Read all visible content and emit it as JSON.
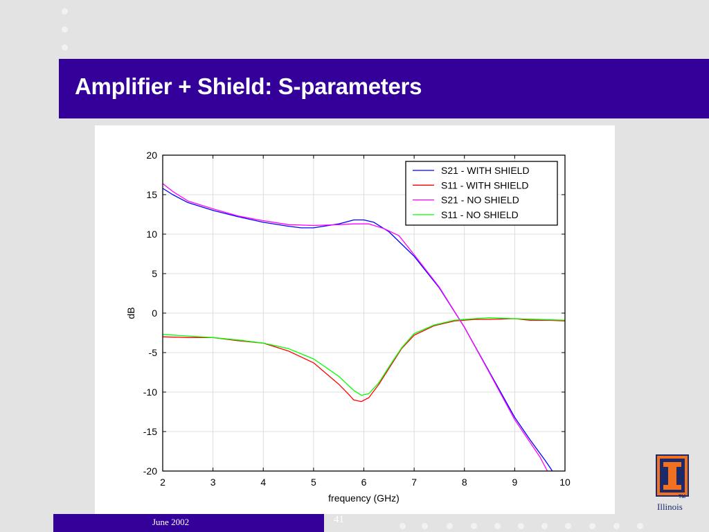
{
  "slide": {
    "title": "Amplifier + Shield: S-parameters",
    "footer_date": "June 2002",
    "page_number": "41",
    "logo_text": "Illinois",
    "logo_tm": "TM"
  },
  "colors": {
    "title_bar": "#330099",
    "series": [
      "#0000ff",
      "#ff0000",
      "#ff00ff",
      "#00ff00"
    ]
  },
  "chart_data": {
    "type": "line",
    "title": "",
    "xlabel": "frequency (GHz)",
    "ylabel": "dB",
    "xlim": [
      2,
      10
    ],
    "ylim": [
      -20,
      20
    ],
    "xticks": [
      2,
      3,
      4,
      5,
      6,
      7,
      8,
      9,
      10
    ],
    "yticks": [
      20,
      15,
      10,
      5,
      0,
      -5,
      -10,
      -15,
      -20
    ],
    "grid": true,
    "legend_position": "top-right",
    "series": [
      {
        "name": "S21 - WITH SHIELD",
        "color": "#0000ff",
        "points": [
          [
            2,
            15.8
          ],
          [
            2.2,
            15
          ],
          [
            2.5,
            14
          ],
          [
            3,
            13
          ],
          [
            3.5,
            12.2
          ],
          [
            4,
            11.5
          ],
          [
            4.5,
            11
          ],
          [
            4.75,
            10.8
          ],
          [
            5,
            10.8
          ],
          [
            5.5,
            11.3
          ],
          [
            5.8,
            11.8
          ],
          [
            6,
            11.8
          ],
          [
            6.2,
            11.5
          ],
          [
            6.5,
            10.3
          ],
          [
            7,
            7.2
          ],
          [
            7.5,
            3.2
          ],
          [
            8,
            -1.8
          ],
          [
            8.5,
            -7.5
          ],
          [
            9,
            -13.2
          ],
          [
            9.3,
            -16
          ],
          [
            9.6,
            -18.6
          ],
          [
            9.75,
            -20
          ]
        ]
      },
      {
        "name": "S11 - WITH SHIELD",
        "color": "#ff0000",
        "points": [
          [
            2,
            -3
          ],
          [
            2.5,
            -3.1
          ],
          [
            3,
            -3.1
          ],
          [
            3.5,
            -3.5
          ],
          [
            4,
            -3.8
          ],
          [
            4.5,
            -4.8
          ],
          [
            5,
            -6.3
          ],
          [
            5.5,
            -9
          ],
          [
            5.7,
            -10.3
          ],
          [
            5.8,
            -11
          ],
          [
            5.95,
            -11.2
          ],
          [
            6.1,
            -10.7
          ],
          [
            6.3,
            -9
          ],
          [
            6.5,
            -7
          ],
          [
            6.75,
            -4.5
          ],
          [
            7,
            -2.8
          ],
          [
            7.4,
            -1.6
          ],
          [
            7.8,
            -1
          ],
          [
            8.2,
            -0.8
          ],
          [
            8.5,
            -0.8
          ],
          [
            9,
            -0.7
          ],
          [
            9.3,
            -0.9
          ],
          [
            9.7,
            -0.9
          ],
          [
            10,
            -1
          ]
        ]
      },
      {
        "name": "S21 - NO SHIELD",
        "color": "#ff00ff",
        "points": [
          [
            2,
            16.4
          ],
          [
            2.2,
            15.4
          ],
          [
            2.5,
            14.2
          ],
          [
            3,
            13.2
          ],
          [
            3.5,
            12.3
          ],
          [
            4,
            11.7
          ],
          [
            4.5,
            11.2
          ],
          [
            5,
            11.1
          ],
          [
            5.5,
            11.2
          ],
          [
            5.8,
            11.3
          ],
          [
            6.1,
            11.3
          ],
          [
            6.4,
            10.7
          ],
          [
            6.7,
            9.8
          ],
          [
            7,
            7.4
          ],
          [
            7.5,
            3.3
          ],
          [
            8,
            -1.8
          ],
          [
            8.5,
            -7.6
          ],
          [
            9,
            -13.5
          ],
          [
            9.5,
            -18.2
          ],
          [
            9.65,
            -20
          ]
        ]
      },
      {
        "name": "S11 - NO SHIELD",
        "color": "#00ff00",
        "points": [
          [
            2,
            -2.7
          ],
          [
            2.5,
            -2.9
          ],
          [
            3,
            -3.1
          ],
          [
            3.5,
            -3.4
          ],
          [
            4,
            -3.8
          ],
          [
            4.5,
            -4.5
          ],
          [
            5,
            -5.8
          ],
          [
            5.5,
            -8
          ],
          [
            5.8,
            -9.8
          ],
          [
            5.95,
            -10.4
          ],
          [
            6.1,
            -10.2
          ],
          [
            6.3,
            -8.8
          ],
          [
            6.5,
            -6.8
          ],
          [
            6.75,
            -4.4
          ],
          [
            7,
            -2.6
          ],
          [
            7.4,
            -1.5
          ],
          [
            7.8,
            -0.9
          ],
          [
            8.2,
            -0.7
          ],
          [
            8.5,
            -0.6
          ],
          [
            9,
            -0.7
          ],
          [
            9.5,
            -0.8
          ],
          [
            10,
            -0.9
          ]
        ]
      }
    ]
  }
}
